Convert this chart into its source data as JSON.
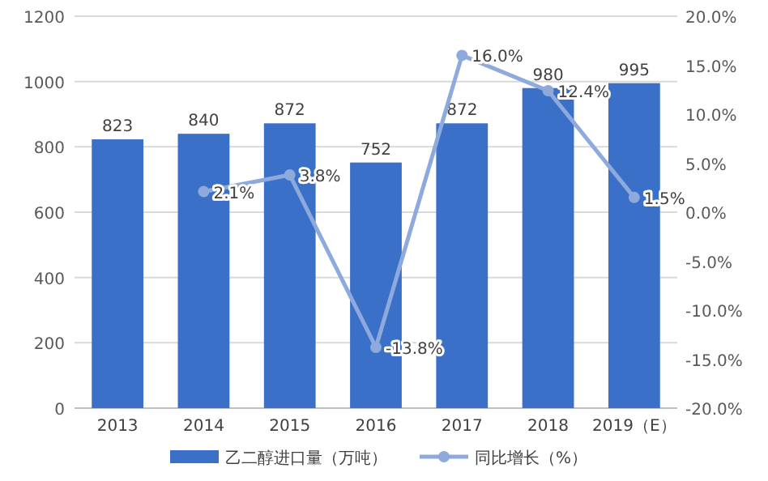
{
  "chart_data": {
    "type": "bar",
    "categories": [
      "2013",
      "2014",
      "2015",
      "2016",
      "2017",
      "2018",
      "2019（E）"
    ],
    "series": [
      {
        "name": "乙二醇进口量（万吨）",
        "color": "#3a70c8",
        "values": [
          823,
          840,
          872,
          752,
          872,
          980,
          995
        ],
        "value_labels": [
          "823",
          "840",
          "872",
          "752",
          "872",
          "980",
          "995"
        ]
      },
      {
        "name": "同比增长（%）",
        "type": "line",
        "axis": "y2",
        "color": "#8eaadc",
        "marker": "circle",
        "values": [
          null,
          2.1,
          3.8,
          -13.8,
          16.0,
          12.4,
          1.5
        ],
        "value_labels": [
          null,
          "2.1%",
          "3.8%",
          "-13.8%",
          "16.0%",
          "12.4%",
          "1.5%"
        ]
      }
    ],
    "ylim": [
      0,
      1200
    ],
    "yticks": [
      0,
      200,
      400,
      600,
      800,
      1000,
      1200
    ],
    "y2lim": [
      -20,
      20
    ],
    "y2ticks": [
      {
        "value": -20,
        "label": "-20.0%"
      },
      {
        "value": -15,
        "label": "-15.0%"
      },
      {
        "value": -10,
        "label": "-10.0%"
      },
      {
        "value": -5,
        "label": "-5.0%"
      },
      {
        "value": 0,
        "label": "0.0%"
      },
      {
        "value": 5,
        "label": "5.0%"
      },
      {
        "value": 10,
        "label": "10.0%"
      },
      {
        "value": 15,
        "label": "15.0%"
      },
      {
        "value": 20,
        "label": "20.0%"
      }
    ],
    "grid": "y",
    "legend": "bottom"
  }
}
